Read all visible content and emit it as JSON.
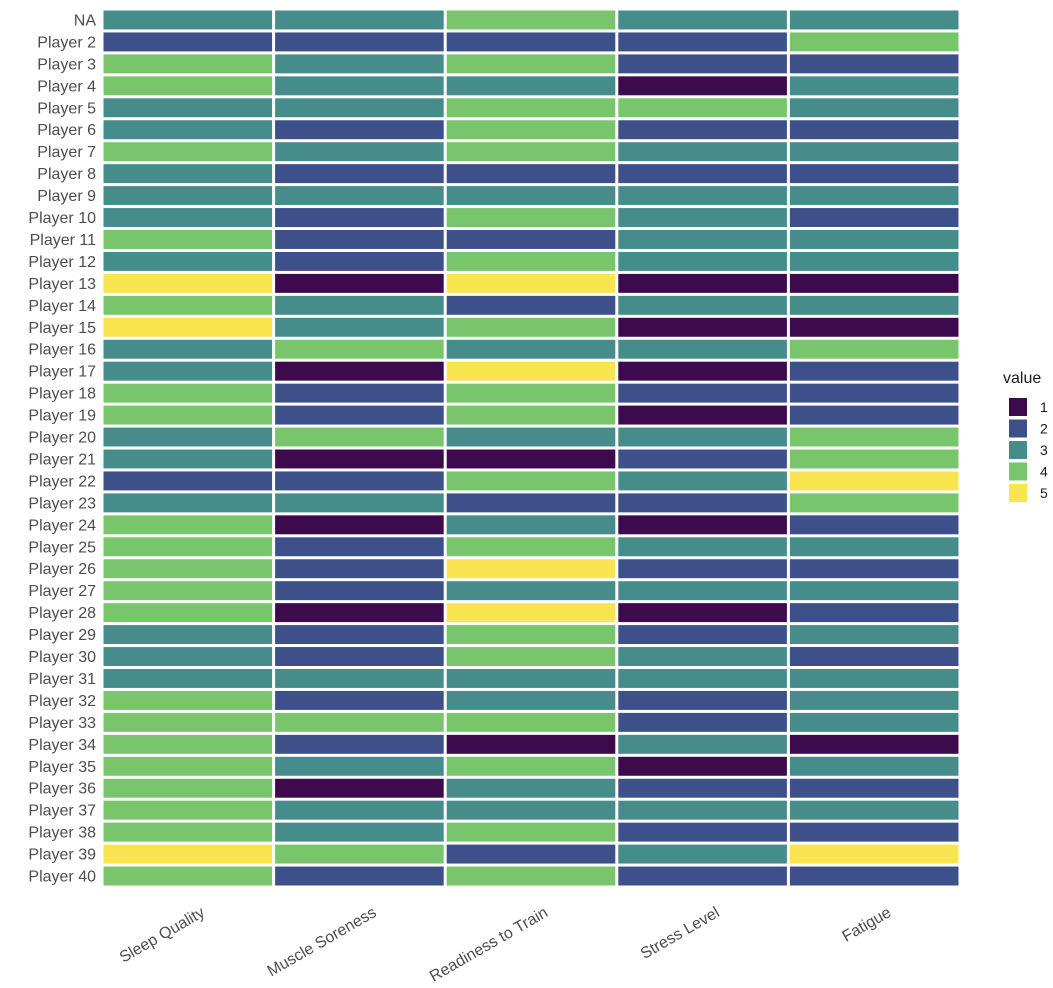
{
  "chart_data": {
    "type": "heatmap",
    "title": "",
    "xlabel": "",
    "ylabel": "",
    "categories": [
      "Sleep Quality",
      "Muscle Soreness",
      "Readiness to Train",
      "Stress Level",
      "Fatigue"
    ],
    "rows": [
      "NA",
      "Player 2",
      "Player 3",
      "Player 4",
      "Player 5",
      "Player 6",
      "Player 7",
      "Player 8",
      "Player 9",
      "Player 10",
      "Player 11",
      "Player 12",
      "Player 13",
      "Player 14",
      "Player 15",
      "Player 16",
      "Player 17",
      "Player 18",
      "Player 19",
      "Player 20",
      "Player 21",
      "Player 22",
      "Player 23",
      "Player 24",
      "Player 25",
      "Player 26",
      "Player 27",
      "Player 28",
      "Player 29",
      "Player 30",
      "Player 31",
      "Player 32",
      "Player 33",
      "Player 34",
      "Player 35",
      "Player 36",
      "Player 37",
      "Player 38",
      "Player 39",
      "Player 40"
    ],
    "values": [
      [
        3,
        3,
        4,
        3,
        3
      ],
      [
        2,
        2,
        2,
        2,
        4
      ],
      [
        4,
        3,
        4,
        2,
        2
      ],
      [
        4,
        3,
        3,
        1,
        3
      ],
      [
        3,
        3,
        4,
        4,
        3
      ],
      [
        3,
        2,
        4,
        2,
        2
      ],
      [
        4,
        3,
        4,
        3,
        3
      ],
      [
        3,
        2,
        2,
        2,
        2
      ],
      [
        3,
        3,
        3,
        3,
        3
      ],
      [
        3,
        2,
        4,
        3,
        2
      ],
      [
        4,
        2,
        2,
        3,
        3
      ],
      [
        3,
        2,
        4,
        3,
        3
      ],
      [
        5,
        1,
        5,
        1,
        1
      ],
      [
        4,
        3,
        2,
        3,
        3
      ],
      [
        5,
        3,
        4,
        1,
        1
      ],
      [
        3,
        4,
        3,
        3,
        4
      ],
      [
        3,
        1,
        5,
        1,
        2
      ],
      [
        4,
        2,
        4,
        2,
        2
      ],
      [
        4,
        2,
        4,
        1,
        2
      ],
      [
        3,
        4,
        3,
        3,
        4
      ],
      [
        3,
        1,
        1,
        2,
        4
      ],
      [
        2,
        2,
        4,
        3,
        5
      ],
      [
        3,
        3,
        2,
        2,
        4
      ],
      [
        4,
        1,
        3,
        1,
        2
      ],
      [
        4,
        2,
        4,
        3,
        3
      ],
      [
        4,
        2,
        5,
        2,
        2
      ],
      [
        4,
        2,
        3,
        3,
        3
      ],
      [
        4,
        1,
        5,
        1,
        2
      ],
      [
        3,
        2,
        4,
        2,
        3
      ],
      [
        3,
        2,
        4,
        3,
        2
      ],
      [
        3,
        3,
        3,
        3,
        3
      ],
      [
        4,
        2,
        3,
        2,
        3
      ],
      [
        4,
        4,
        4,
        2,
        3
      ],
      [
        4,
        2,
        1,
        3,
        1
      ],
      [
        4,
        3,
        4,
        1,
        3
      ],
      [
        4,
        1,
        3,
        2,
        2
      ],
      [
        4,
        3,
        3,
        3,
        3
      ],
      [
        4,
        3,
        4,
        2,
        2
      ],
      [
        5,
        4,
        2,
        3,
        5
      ],
      [
        4,
        2,
        4,
        2,
        2
      ]
    ],
    "legend": {
      "title": "value",
      "position": "right",
      "levels": [
        {
          "label": "1",
          "value": 1,
          "color": "#440154"
        },
        {
          "label": "2",
          "value": 2,
          "color": "#3b528b"
        },
        {
          "label": "3",
          "value": 3,
          "color": "#21908c"
        },
        {
          "label": "4",
          "value": 4,
          "color": "#5dc863"
        },
        {
          "label": "5",
          "value": 5,
          "color": "#fde725"
        }
      ]
    },
    "colors": {
      "1": "#3e0a4e",
      "2": "#3d5089",
      "3": "#468c8a",
      "4": "#79c56c",
      "5": "#f8e44f"
    }
  }
}
